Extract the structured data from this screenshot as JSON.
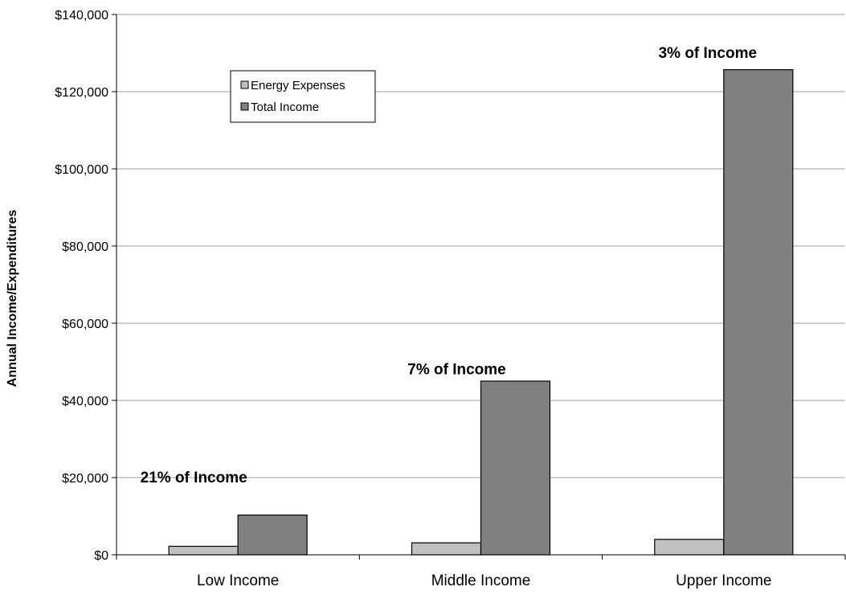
{
  "chart_data": {
    "type": "bar",
    "categories": [
      "Low Income",
      "Middle Income",
      "Upper Income"
    ],
    "series": [
      {
        "name": "Energy Expenses",
        "values": [
          2200,
          3100,
          4000
        ],
        "color": "#c0c0c0"
      },
      {
        "name": "Total Income",
        "values": [
          10300,
          45000,
          125700
        ],
        "color": "#808080"
      }
    ],
    "annotations": [
      "21% of Income",
      "7% of Income",
      "3% of Income"
    ],
    "xlabel": "",
    "ylabel": "Annual Income/Expenditures",
    "ylim": [
      0,
      140000
    ],
    "yticks": [
      0,
      20000,
      40000,
      60000,
      80000,
      100000,
      120000,
      140000
    ],
    "ytick_labels": [
      "$0",
      "$20,000",
      "$40,000",
      "$60,000",
      "$80,000",
      "$100,000",
      "$120,000",
      "$140,000"
    ],
    "grid": true,
    "legend_position": "top-left"
  }
}
